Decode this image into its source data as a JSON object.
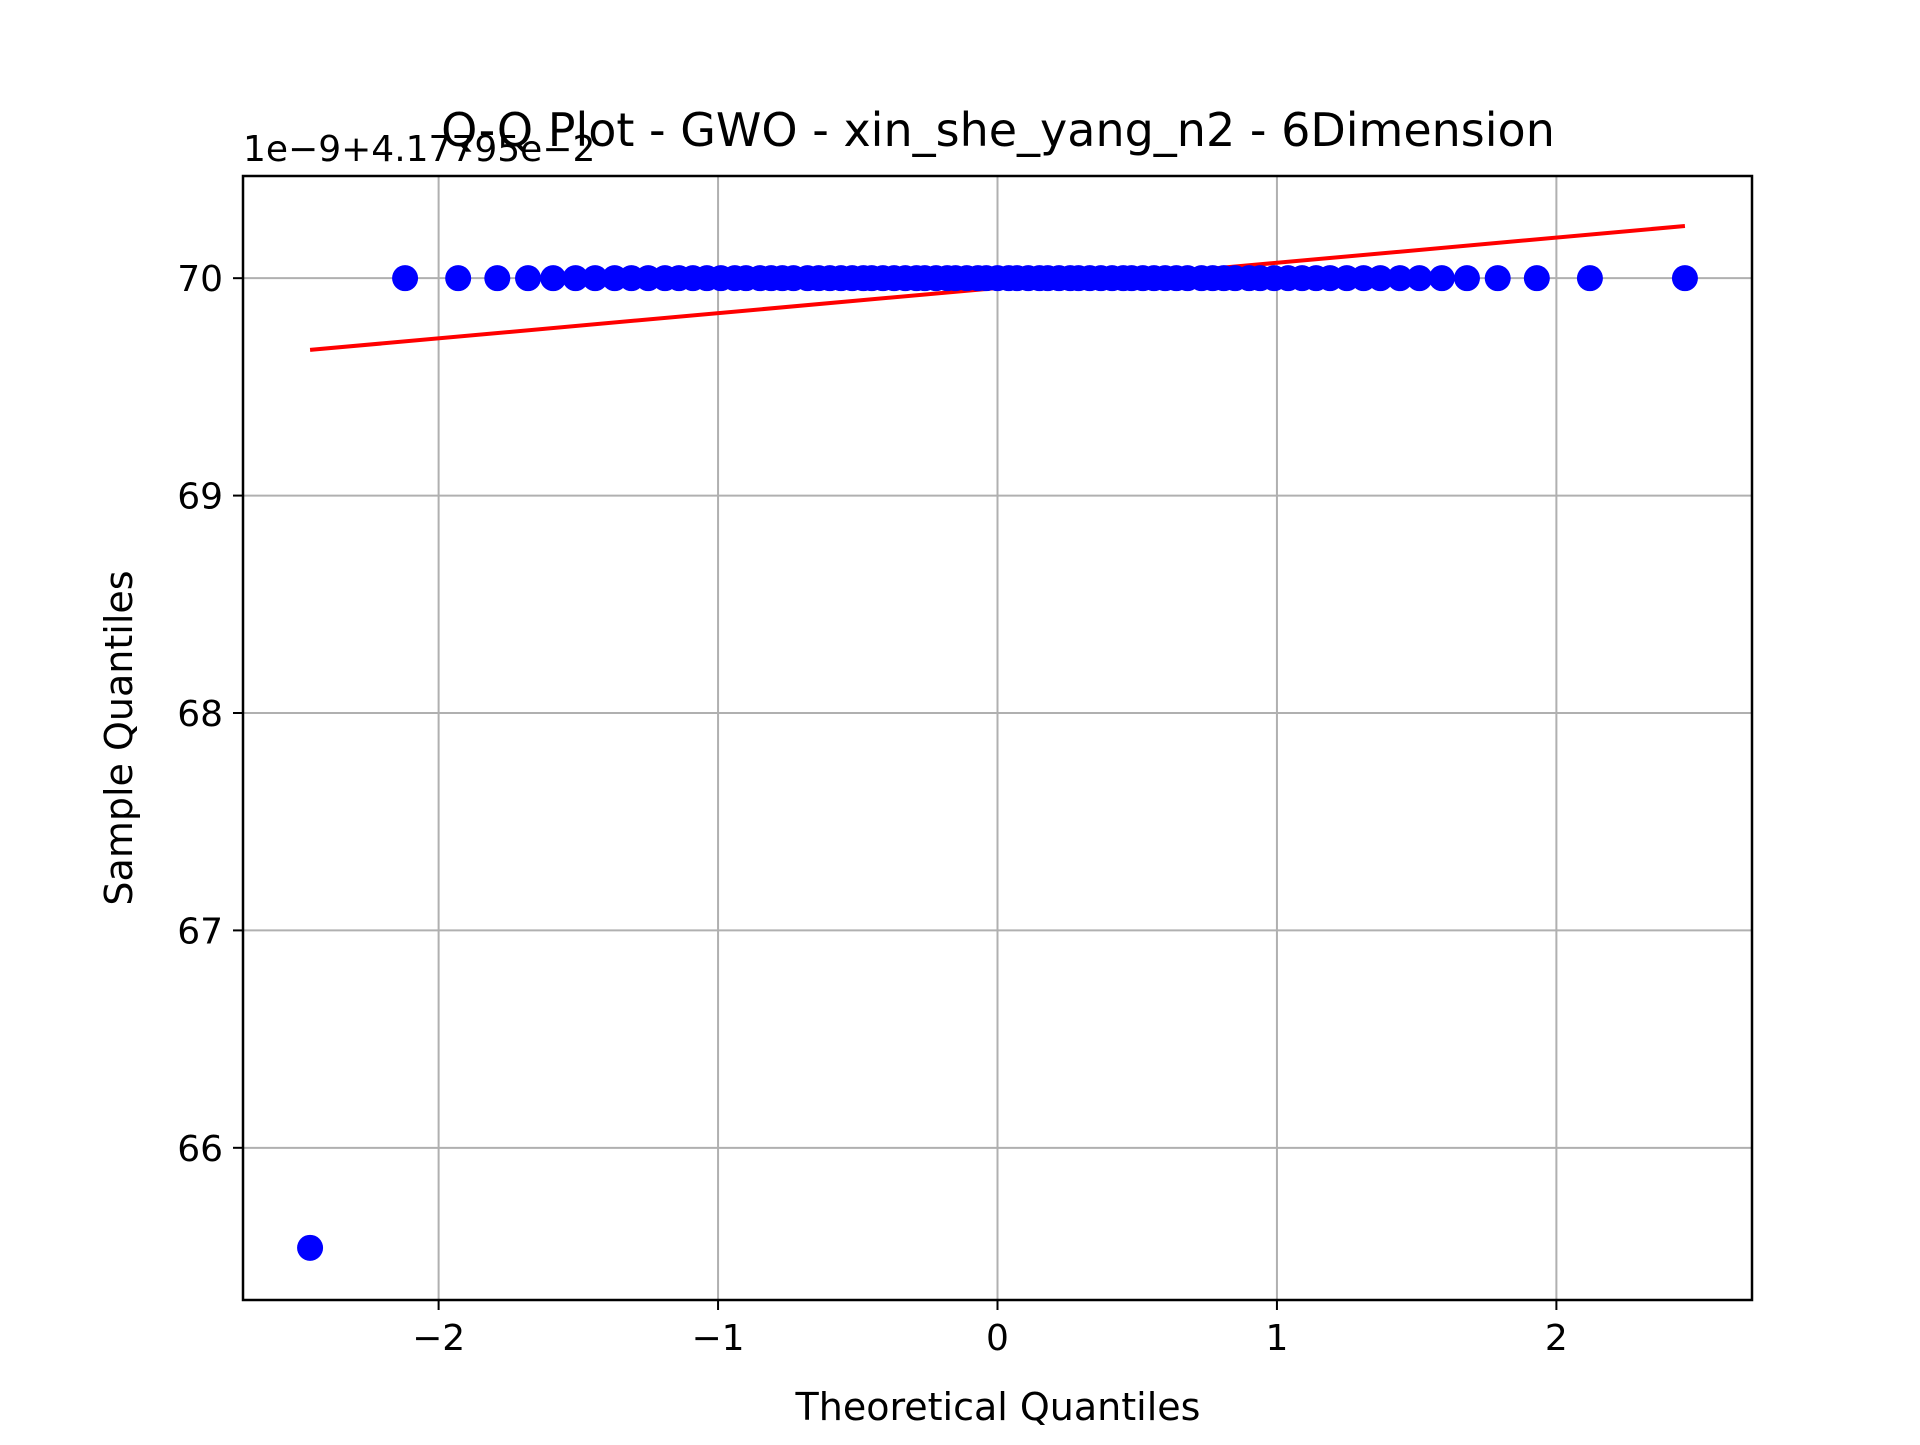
{
  "chart_data": {
    "type": "scatter",
    "title": "Q-Q Plot - GWO - xin_she_yang_n2 - 6Dimension",
    "xlabel": "Theoretical Quantiles",
    "ylabel": "Sample Quantiles",
    "offset_text": "1e−9+4.17795e−2",
    "xlim": [
      -2.7,
      2.7
    ],
    "ylim": [
      65.3,
      70.47
    ],
    "xticks": [
      {
        "value": -2,
        "label": "−2"
      },
      {
        "value": -1,
        "label": "−1"
      },
      {
        "value": 0,
        "label": "0"
      },
      {
        "value": 1,
        "label": "1"
      },
      {
        "value": 2,
        "label": "2"
      }
    ],
    "yticks": [
      {
        "value": 66,
        "label": "66"
      },
      {
        "value": 67,
        "label": "67"
      },
      {
        "value": 68,
        "label": "68"
      },
      {
        "value": 69,
        "label": "69"
      },
      {
        "value": 70,
        "label": "70"
      }
    ],
    "grid": true,
    "points_color": "#0000ff",
    "line_color": "#ff0000",
    "points": {
      "x": [
        -2.46,
        -2.12,
        -1.93,
        -1.79,
        -1.68,
        -1.59,
        -1.51,
        -1.44,
        -1.37,
        -1.31,
        -1.25,
        -1.19,
        -1.14,
        -1.09,
        -1.04,
        -0.99,
        -0.94,
        -0.9,
        -0.85,
        -0.81,
        -0.77,
        -0.73,
        -0.68,
        -0.64,
        -0.6,
        -0.56,
        -0.52,
        -0.48,
        -0.45,
        -0.41,
        -0.37,
        -0.33,
        -0.29,
        -0.26,
        -0.22,
        -0.18,
        -0.15,
        -0.11,
        -0.07,
        -0.04,
        0.0,
        0.04,
        0.07,
        0.11,
        0.15,
        0.18,
        0.22,
        0.26,
        0.29,
        0.33,
        0.37,
        0.41,
        0.45,
        0.48,
        0.52,
        0.56,
        0.6,
        0.64,
        0.68,
        0.73,
        0.77,
        0.81,
        0.85,
        0.9,
        0.94,
        0.99,
        1.04,
        1.09,
        1.14,
        1.19,
        1.25,
        1.31,
        1.37,
        1.44,
        1.51,
        1.59,
        1.68,
        1.79,
        1.93,
        2.12,
        2.46
      ],
      "y": [
        65.54,
        70.0,
        70.0,
        70.0,
        70.0,
        70.0,
        70.0,
        70.0,
        70.0,
        70.0,
        70.0,
        70.0,
        70.0,
        70.0,
        70.0,
        70.0,
        70.0,
        70.0,
        70.0,
        70.0,
        70.0,
        70.0,
        70.0,
        70.0,
        70.0,
        70.0,
        70.0,
        70.0,
        70.0,
        70.0,
        70.0,
        70.0,
        70.0,
        70.0,
        70.0,
        70.0,
        70.0,
        70.0,
        70.0,
        70.0,
        70.0,
        70.0,
        70.0,
        70.0,
        70.0,
        70.0,
        70.0,
        70.0,
        70.0,
        70.0,
        70.0,
        70.0,
        70.0,
        70.0,
        70.0,
        70.0,
        70.0,
        70.0,
        70.0,
        70.0,
        70.0,
        70.0,
        70.0,
        70.0,
        70.0,
        70.0,
        70.0,
        70.0,
        70.0,
        70.0,
        70.0,
        70.0,
        70.0,
        70.0,
        70.0,
        70.0,
        70.0,
        70.0,
        70.0,
        70.0,
        70.0
      ]
    },
    "fit_line": {
      "x": [
        -2.46,
        2.46
      ],
      "y": [
        69.67,
        70.24
      ]
    }
  }
}
